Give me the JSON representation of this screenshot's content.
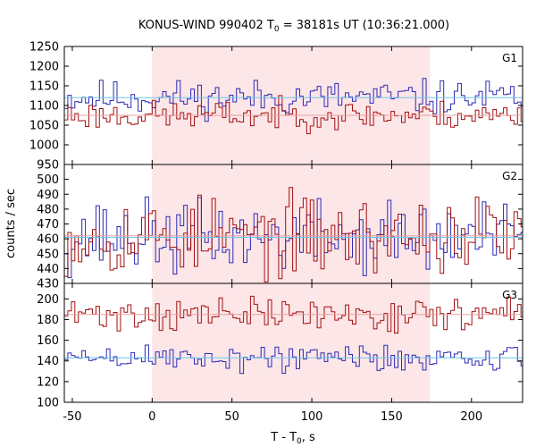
{
  "title": {
    "prefix": "KONUS-WIND 990402 T",
    "sub": "0",
    "suffix": " = 38181s UT (10:36:21.000)"
  },
  "xlabel": {
    "main": "T - T",
    "sub": "0",
    "suffix": ", s"
  },
  "ylabel": "counts / sec",
  "colors": {
    "red_series": "#a01010",
    "blue_series": "#2a2ab4",
    "red_fit": "#e8a0a0",
    "blue_fit": "#6ec6ea",
    "shade": "#fde6e8"
  },
  "chart_data": {
    "type": "line",
    "x_range": [
      -55,
      232
    ],
    "x_ticks": [
      -50,
      0,
      50,
      100,
      150,
      200
    ],
    "shaded_interval": [
      0,
      174
    ],
    "panels": [
      {
        "label": "G1",
        "ylim": [
          950,
          1250
        ],
        "y_ticks": [
          950,
          1000,
          1050,
          1100,
          1150,
          1200,
          1250
        ],
        "series": [
          {
            "color_key": "blue_series",
            "baseline": 1120,
            "amplitude": 22,
            "seed": 11
          },
          {
            "color_key": "red_series",
            "baseline": 1075,
            "amplitude": 18,
            "seed": 23
          }
        ],
        "fits": [
          {
            "color_key": "blue_fit",
            "value": 1120
          },
          {
            "color_key": "red_fit",
            "value": 1075
          }
        ]
      },
      {
        "label": "G2",
        "ylim": [
          430,
          510
        ],
        "y_ticks": [
          430,
          440,
          450,
          460,
          470,
          480,
          490,
          500
        ],
        "series": [
          {
            "color_key": "blue_series",
            "baseline": 461,
            "amplitude": 12,
            "seed": 37
          },
          {
            "color_key": "red_series",
            "baseline": 462,
            "amplitude": 13,
            "seed": 53
          }
        ],
        "fits": [
          {
            "color_key": "blue_fit",
            "value": 461
          },
          {
            "color_key": "red_fit",
            "value": 462
          }
        ]
      },
      {
        "label": "G3",
        "ylim": [
          100,
          215
        ],
        "y_ticks": [
          100,
          120,
          140,
          160,
          180,
          200
        ],
        "series": [
          {
            "color_key": "red_series",
            "baseline": 185,
            "amplitude": 8,
            "seed": 71
          },
          {
            "color_key": "blue_series",
            "baseline": 143,
            "amplitude": 7,
            "seed": 89
          }
        ],
        "fits": [
          {
            "color_key": "red_fit",
            "value": 185
          },
          {
            "color_key": "blue_fit",
            "value": 143
          }
        ]
      }
    ]
  }
}
